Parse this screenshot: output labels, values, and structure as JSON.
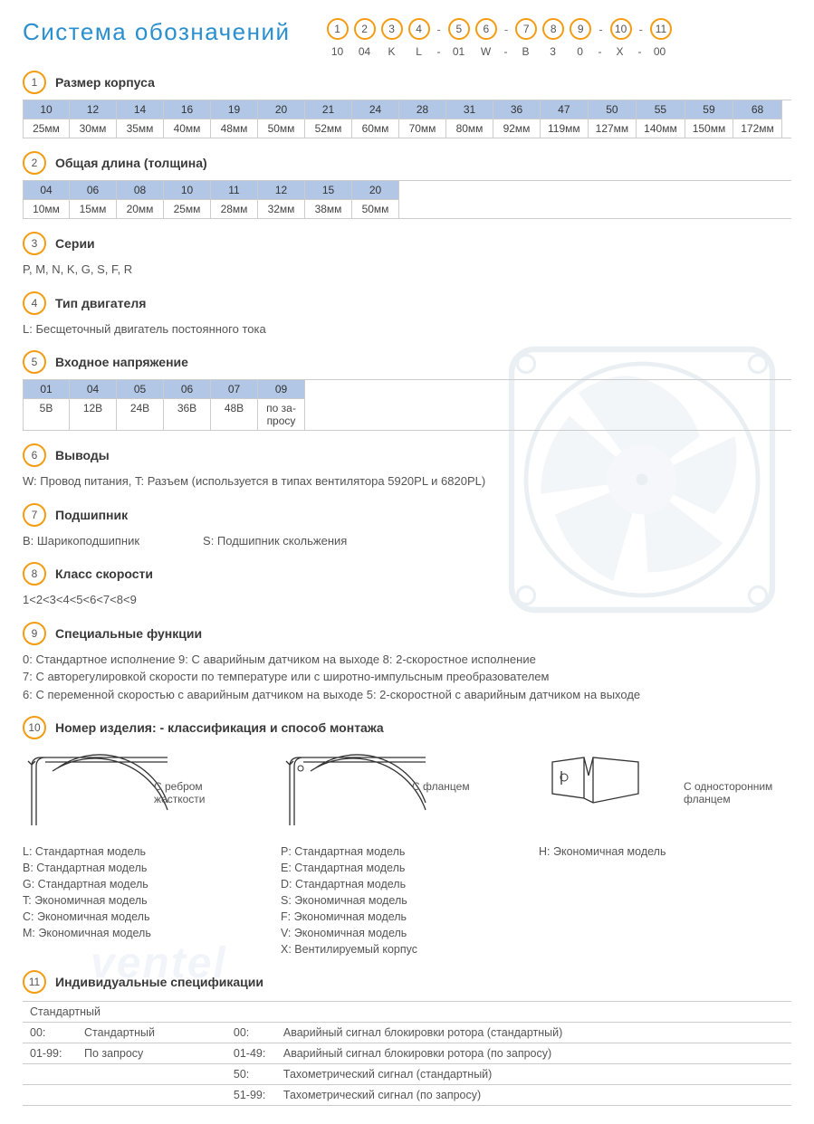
{
  "title": "Система обозначений",
  "legend": {
    "numbers": [
      "1",
      "2",
      "3",
      "4",
      "5",
      "6",
      "7",
      "8",
      "9",
      "10",
      "11"
    ],
    "values": [
      "10",
      "04",
      "K",
      "L",
      "01",
      "W",
      "B",
      "3",
      "0",
      "X",
      "00"
    ]
  },
  "sections": [
    {
      "num": "1",
      "title": "Размер корпуса",
      "table": [
        {
          "code": "10",
          "val": "25мм"
        },
        {
          "code": "12",
          "val": "30мм"
        },
        {
          "code": "14",
          "val": "35мм"
        },
        {
          "code": "16",
          "val": "40мм"
        },
        {
          "code": "19",
          "val": "48мм"
        },
        {
          "code": "20",
          "val": "50мм"
        },
        {
          "code": "21",
          "val": "52мм"
        },
        {
          "code": "24",
          "val": "60мм"
        },
        {
          "code": "28",
          "val": "70мм"
        },
        {
          "code": "31",
          "val": "80мм"
        },
        {
          "code": "36",
          "val": "92мм"
        },
        {
          "code": "47",
          "val": "119мм"
        },
        {
          "code": "50",
          "val": "127мм"
        },
        {
          "code": "55",
          "val": "140мм"
        },
        {
          "code": "59",
          "val": "150мм"
        },
        {
          "code": "68",
          "val": "172мм"
        }
      ]
    },
    {
      "num": "2",
      "title": "Общая длина (толщина)",
      "table": [
        {
          "code": "04",
          "val": "10мм"
        },
        {
          "code": "06",
          "val": "15мм"
        },
        {
          "code": "08",
          "val": "20мм"
        },
        {
          "code": "10",
          "val": "25мм"
        },
        {
          "code": "11",
          "val": "28мм"
        },
        {
          "code": "12",
          "val": "32мм"
        },
        {
          "code": "15",
          "val": "38мм"
        },
        {
          "code": "20",
          "val": "50мм"
        }
      ]
    },
    {
      "num": "3",
      "title": "Серии",
      "text": "P, M, N, K, G, S, F, R"
    },
    {
      "num": "4",
      "title": "Тип двигателя",
      "text": "L: Бесщеточный двигатель постоянного тока"
    },
    {
      "num": "5",
      "title": "Входное напряжение",
      "table": [
        {
          "code": "01",
          "val": "5В"
        },
        {
          "code": "04",
          "val": "12В"
        },
        {
          "code": "05",
          "val": "24В"
        },
        {
          "code": "06",
          "val": "36В"
        },
        {
          "code": "07",
          "val": "48В"
        },
        {
          "code": "09",
          "val": "по за-\nпросу"
        }
      ]
    },
    {
      "num": "6",
      "title": "Выводы",
      "text": "W: Провод питания, T: Разъем (используется в типах вентилятора  5920PL и 6820PL)"
    },
    {
      "num": "7",
      "title": "Подшипник",
      "text_parts": [
        "B: Шарикоподшипник",
        "S: Подшипник скольжения"
      ]
    },
    {
      "num": "8",
      "title": "Класс скорости",
      "text": "1<2<3<4<5<6<7<8<9"
    },
    {
      "num": "9",
      "title": "Специальные функции",
      "lines": [
        "0: Стандартное исполнение   9:  С аварийным датчиком на выходе   8: 2-скоростное исполнение",
        "7: С авторегулировкой скорости по температуре или с широтно-импульсным преобразователем",
        "6: С переменной скоростью с аварийным датчиком на выходе   5: 2-скоростной с аварийным датчиком на выходе"
      ]
    },
    {
      "num": "10",
      "title": "Номер изделия: - классификация  и способ монтажа",
      "diagrams": [
        {
          "label": "С ребром жесткости",
          "models": [
            "L:  Стандартная модель",
            "B:  Стандартная модель",
            "G:  Стандартная модель",
            "T:  Экономичная модель",
            "C:  Экономичная модель",
            "M:  Экономичная модель"
          ]
        },
        {
          "label": "С фланцем",
          "models": [
            "P:  Стандартная модель",
            "E:  Стандартная модель",
            "D:  Стандартная модель",
            "S:  Экономичная модель",
            "F:  Экономичная модель",
            "V:  Экономичная модель",
            "X:  Вентилируемый корпус"
          ]
        },
        {
          "label": "С односторонним фланцем",
          "models": [
            "H:  Экономичная модель"
          ]
        }
      ]
    },
    {
      "num": "11",
      "title": "Индивидуальные спецификации",
      "spec_header": "Стандартный",
      "spec_rows": [
        [
          "00:",
          "Стандартный",
          "00:",
          "Аварийный сигнал блокировки ротора (стандартный)"
        ],
        [
          "01-99:",
          "По запросу",
          "01-49:",
          "Аварийный сигнал блокировки ротора (по запросу)"
        ],
        [
          "",
          "",
          "50:",
          "Тахометрический сигнал (стандартный)"
        ],
        [
          "",
          "",
          "51-99:",
          "Тахометрический сигнал (по запросу)"
        ]
      ]
    }
  ],
  "colors": {
    "title": "#2a8fcf",
    "circle_border": "#f39c12",
    "table_header_bg": "#b1c7e5",
    "text": "#4a4a4a"
  },
  "watermark": "ventel"
}
